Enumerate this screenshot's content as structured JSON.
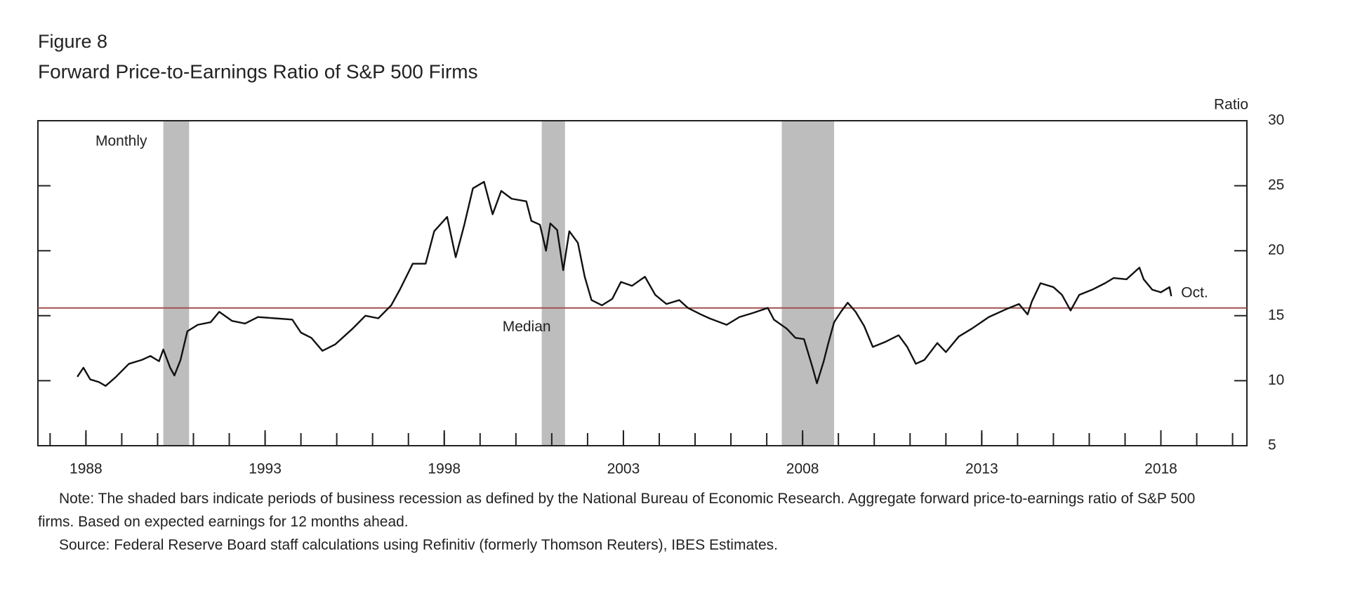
{
  "chart_data": {
    "type": "line",
    "figure_label": "Figure 8",
    "title": "Forward Price-to-Earnings Ratio of S&P 500 Firms",
    "y_axis_label": "Ratio",
    "series_label": "Monthly",
    "end_label": "Oct.",
    "median_label": "Median",
    "median": 15.6,
    "median_color": "#a0524f",
    "shaded_periods": [
      [
        1990.16,
        1990.88
      ],
      [
        2000.72,
        2001.37
      ],
      [
        2007.42,
        2008.88
      ]
    ],
    "shade_color": "#bdbdbd",
    "x": [
      1987.76,
      1987.93,
      1988.12,
      1988.36,
      1988.55,
      1988.84,
      1989.2,
      1989.56,
      1989.8,
      1990.04,
      1990.16,
      1990.35,
      1990.47,
      1990.64,
      1990.83,
      1991.12,
      1991.48,
      1991.72,
      1992.08,
      1992.44,
      1992.8,
      1993.28,
      1993.76,
      1994.0,
      1994.29,
      1994.6,
      1994.96,
      1995.44,
      1995.8,
      1996.16,
      1996.52,
      1996.76,
      1997.12,
      1997.48,
      1997.72,
      1998.08,
      1998.32,
      1998.56,
      1998.8,
      1999.11,
      1999.35,
      1999.59,
      1999.88,
      2000.29,
      2000.43,
      2000.67,
      2000.84,
      2000.96,
      2001.15,
      2001.32,
      2001.49,
      2001.73,
      2001.92,
      2002.11,
      2002.4,
      2002.69,
      2002.93,
      2003.24,
      2003.6,
      2003.89,
      2004.2,
      2004.56,
      2004.8,
      2005.16,
      2005.4,
      2005.88,
      2006.24,
      2006.6,
      2007.03,
      2007.2,
      2007.56,
      2007.8,
      2008.04,
      2008.28,
      2008.4,
      2008.59,
      2008.71,
      2008.88,
      2009.07,
      2009.26,
      2009.48,
      2009.72,
      2009.96,
      2010.32,
      2010.68,
      2010.92,
      2011.16,
      2011.4,
      2011.76,
      2012.0,
      2012.36,
      2012.72,
      2013.2,
      2013.68,
      2014.04,
      2014.28,
      2014.4,
      2014.64,
      2015.0,
      2015.24,
      2015.48,
      2015.72,
      2016.08,
      2016.44,
      2016.68,
      2017.04,
      2017.4,
      2017.52,
      2017.76,
      2018.0,
      2018.24,
      2018.29
    ],
    "series": [
      {
        "name": "Forward P/E",
        "color": "#111111",
        "values": [
          10.3,
          11,
          10.1,
          9.9,
          9.6,
          10.3,
          11.3,
          11.6,
          11.9,
          11.5,
          12.4,
          11,
          10.4,
          11.6,
          13.8,
          14.3,
          14.5,
          15.3,
          14.6,
          14.4,
          14.9,
          14.8,
          14.7,
          13.7,
          13.3,
          12.3,
          12.8,
          14.0,
          15.0,
          14.8,
          15.8,
          17.0,
          19.0,
          19.0,
          21.5,
          22.6,
          19.5,
          22,
          24.8,
          25.3,
          22.8,
          24.6,
          24,
          23.8,
          22.3,
          22,
          20,
          22.1,
          21.6,
          18.5,
          21.5,
          20.6,
          18,
          16.2,
          15.8,
          16.3,
          17.6,
          17.3,
          18.0,
          16.6,
          15.9,
          16.2,
          15.6,
          15.1,
          14.8,
          14.3,
          14.9,
          15.2,
          15.6,
          14.7,
          14.0,
          13.3,
          13.2,
          11,
          9.8,
          11.5,
          12.8,
          14.5,
          15.3,
          16.0,
          15.3,
          14.2,
          12.6,
          13.0,
          13.5,
          12.6,
          11.3,
          11.6,
          12.9,
          12.2,
          13.4,
          14.0,
          14.9,
          15.5,
          15.9,
          15.1,
          16.1,
          17.5,
          17.2,
          16.6,
          15.4,
          16.6,
          17.0,
          17.5,
          17.9,
          17.8,
          18.7,
          17.8,
          17.0,
          16.8,
          17.2,
          16.5
        ]
      }
    ],
    "xlim": [
      1986.66,
      2020.4
    ],
    "xticks": [
      1988,
      1993,
      1998,
      2003,
      2008,
      2013,
      2018
    ],
    "xminorticks": [
      1987,
      1988,
      1989,
      1990,
      1991,
      1992,
      1993,
      1994,
      1995,
      1996,
      1997,
      1998,
      1999,
      2000,
      2001,
      2002,
      2003,
      2004,
      2005,
      2006,
      2007,
      2008,
      2009,
      2010,
      2011,
      2012,
      2013,
      2014,
      2015,
      2016,
      2017,
      2018,
      2019,
      2020
    ],
    "ylim": [
      5,
      30
    ],
    "yticks": [
      5,
      10,
      15,
      20,
      25,
      30
    ],
    "y_axis_side": "right",
    "note": "Note: The shaded bars indicate periods of business recession as defined by the National Bureau of Economic Research. Aggregate forward price-to-earnings ratio of S&P 500 firms. Based on expected earnings for 12 months ahead.",
    "source": "Source: Federal Reserve Board staff calculations using Refinitiv (formerly Thomson Reuters), IBES Estimates."
  }
}
